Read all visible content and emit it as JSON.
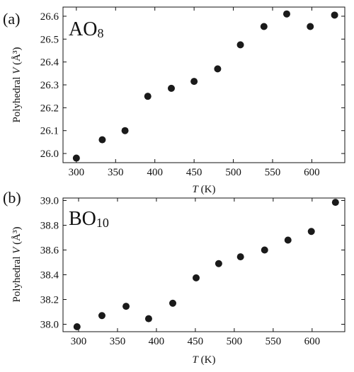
{
  "chart_data": [
    {
      "type": "scatter",
      "panel_label": "(a)",
      "annotation": {
        "main": "AO",
        "sub": "8"
      },
      "xlabel": {
        "italic": "T",
        "rest": " (K)"
      },
      "ylabel": {
        "plain": "Polyhedral ",
        "italic": "V",
        "rest": " (Å³)"
      },
      "xlim": [
        283,
        642
      ],
      "ylim": [
        25.96,
        26.64
      ],
      "xticks": [
        300,
        350,
        400,
        450,
        500,
        550,
        600
      ],
      "yticks": [
        "26.0",
        "26.1",
        "26.2",
        "26.3",
        "26.4",
        "26.5",
        "26.6"
      ],
      "x": [
        300,
        333,
        362,
        391,
        421,
        450,
        480,
        509,
        539,
        568,
        598,
        629
      ],
      "y": [
        25.98,
        26.06,
        26.1,
        26.25,
        26.285,
        26.315,
        26.37,
        26.475,
        26.555,
        26.61,
        26.555,
        26.605
      ],
      "grid": false
    },
    {
      "type": "scatter",
      "panel_label": "(b)",
      "annotation": {
        "main": "BO",
        "sub": "10"
      },
      "xlabel": {
        "italic": "T",
        "rest": " (K)"
      },
      "ylabel": {
        "plain": "Polyhedral ",
        "italic": "V",
        "rest": " (Å³)"
      },
      "xlim": [
        280,
        642
      ],
      "ylim": [
        37.94,
        39.02
      ],
      "xticks": [
        300,
        350,
        400,
        450,
        500,
        550,
        600
      ],
      "yticks": [
        "38.0",
        "38.2",
        "38.4",
        "38.6",
        "38.8",
        "39.0"
      ],
      "x": [
        298,
        330,
        361,
        390,
        421,
        451,
        480,
        508,
        539,
        569,
        599,
        630
      ],
      "y": [
        37.98,
        38.07,
        38.145,
        38.045,
        38.17,
        38.375,
        38.49,
        38.545,
        38.6,
        38.68,
        38.75,
        38.985
      ],
      "grid": false
    }
  ]
}
